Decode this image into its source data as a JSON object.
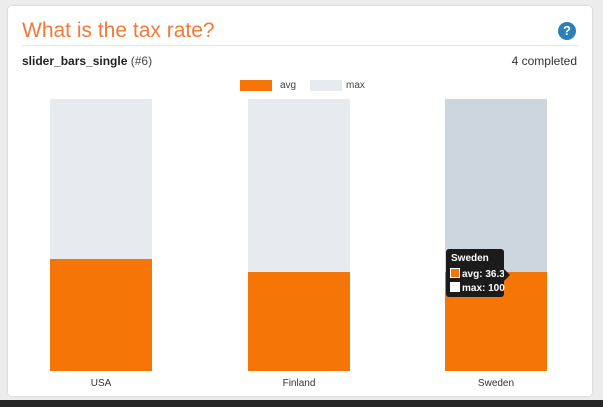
{
  "header": {
    "title": "What is the tax rate?",
    "help_glyph": "?"
  },
  "task": {
    "name": "slider_bars_single",
    "id_text": "(#6)",
    "completed_text": "4 completed"
  },
  "colors": {
    "accent": "#f07a3a",
    "avg": "#f57506",
    "max": "#e7eaee",
    "max_hover": "#cdd5df",
    "help": "#2c7fb8"
  },
  "chart_data": {
    "type": "bar",
    "categories": [
      "USA",
      "Finland",
      "Sweden"
    ],
    "series": [
      {
        "name": "avg",
        "values": [
          41,
          36.3,
          36.3
        ]
      },
      {
        "name": "max",
        "values": [
          100,
          100,
          100
        ]
      }
    ],
    "ylim": [
      0,
      100
    ],
    "legend": "top-center",
    "highlighted_category": "Sweden"
  },
  "tooltip": {
    "title": "Sweden",
    "avg_text": "avg: 36.3",
    "max_text": "max: 100"
  }
}
